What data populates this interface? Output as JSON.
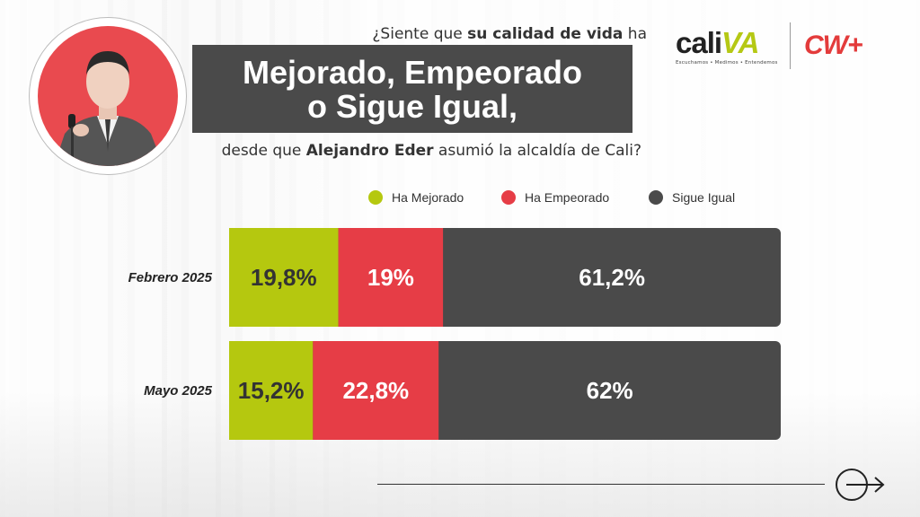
{
  "header": {
    "question_prefix": "¿Siente que ",
    "question_bold": "su calidad de vida",
    "question_suffix": " ha",
    "banner_line1": "Mejorado, Empeorado",
    "banner_line2": "o Sigue Igual,",
    "sub_prefix": "desde que ",
    "sub_bold": "Alejandro Eder",
    "sub_suffix": " asumió la alcaldía de Cali?"
  },
  "logos": {
    "cali_word_a": "cali",
    "cali_word_b": "VA",
    "cali_tagline": "Escuchamos • Medimos • Entendemos",
    "cw_text": "CW+"
  },
  "colors": {
    "mejorado": "#b5c80f",
    "empeorado": "#e63d46",
    "igual": "#4a4a4a",
    "banner": "#4a4a4a",
    "accent_red": "#e94a4f"
  },
  "icons": {
    "footer": "arrow-circle-icon"
  },
  "chart_data": {
    "type": "bar",
    "orientation": "horizontal-stacked-100",
    "categories": [
      "Febrero 2025",
      "Mayo 2025"
    ],
    "series": [
      {
        "name": "Ha Mejorado",
        "values": [
          19.8,
          15.2
        ],
        "labels": [
          "19,8%",
          "15,2%"
        ],
        "color": "#b5c80f",
        "text_color": "#333333"
      },
      {
        "name": "Ha Empeorado",
        "values": [
          19,
          22.8
        ],
        "labels": [
          "19%",
          "22,8%"
        ],
        "color": "#e63d46",
        "text_color": "#ffffff"
      },
      {
        "name": "Sigue Igual",
        "values": [
          61.2,
          62
        ],
        "labels": [
          "61,2%",
          "62%"
        ],
        "color": "#4a4a4a",
        "text_color": "#ffffff"
      }
    ],
    "xlim": [
      0,
      100
    ],
    "legend": "top"
  }
}
